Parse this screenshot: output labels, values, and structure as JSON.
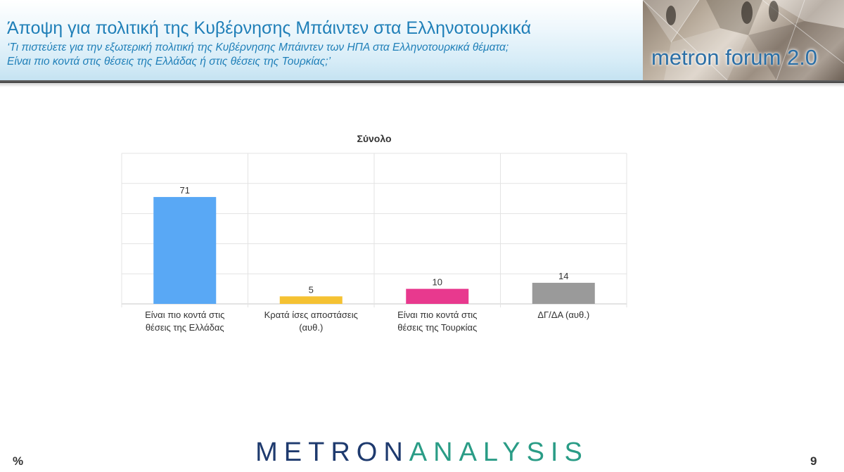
{
  "header": {
    "title": "Άποψη για πολιτική της Κυβέρνησης Μπάιντεν στα Ελληνοτουρκικά",
    "subtitle_line1": "‘Τι πιστεύετε για την εξωτερική πολιτική της Κυβέρνησης Μπάιντεν των ΗΠΑ στα Ελληνοτουρκικά θέματα;",
    "subtitle_line2": "Είναι πιο κοντά στις θέσεις της Ελλάδας ή στις θέσεις της Τουρκίας;’",
    "logo_text": "metron forum 2.0"
  },
  "chart_data": {
    "type": "bar",
    "title": "Σύνολο",
    "categories": [
      [
        "Είναι πιο κοντά στις",
        "θέσεις της Ελλάδας"
      ],
      [
        "Κρατά ίσες αποστάσεις",
        "(αυθ.)"
      ],
      [
        "Είναι πιο κοντά στις",
        "θέσεις της Τουρκίας"
      ],
      [
        "ΔΓ/ΔΑ (αυθ.)"
      ]
    ],
    "values": [
      71,
      5,
      10,
      14
    ],
    "colors": [
      "#59a8f5",
      "#f5c232",
      "#e8398e",
      "#9a9a9a"
    ],
    "ylim": [
      0,
      100
    ],
    "grid": true,
    "xlabel": "",
    "ylabel": ""
  },
  "footer": {
    "brand_first": "METRON",
    "brand_second": "ANALYSIS",
    "unit_label": "%",
    "page_number": "9"
  }
}
